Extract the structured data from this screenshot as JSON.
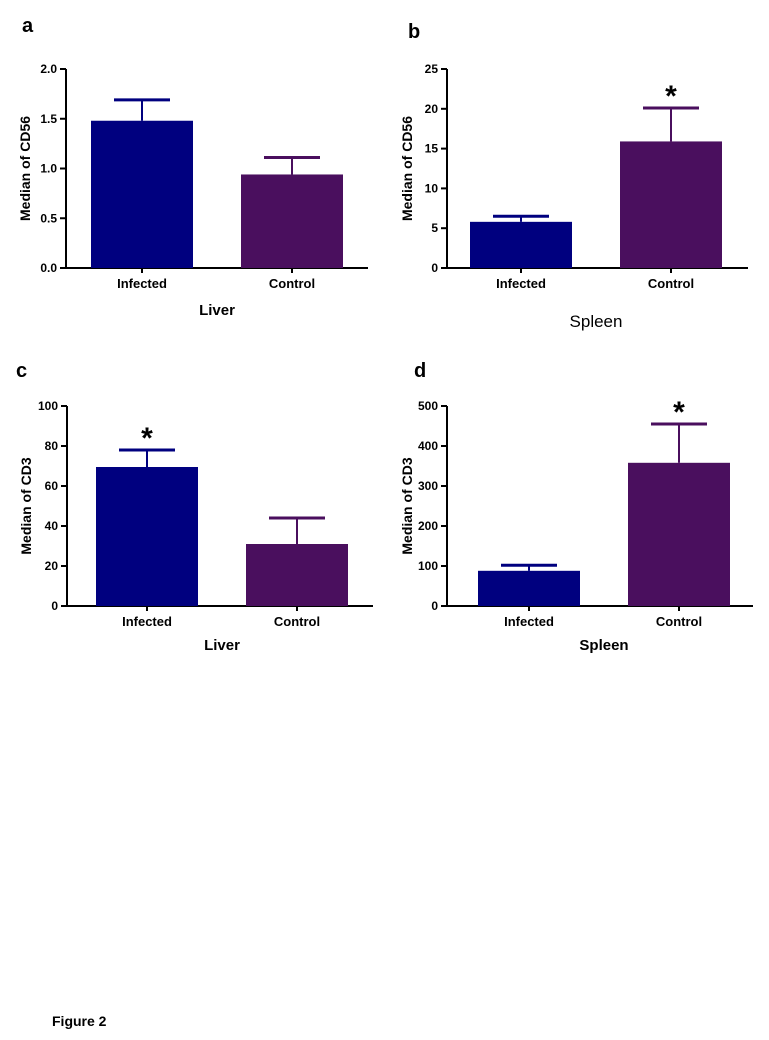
{
  "figure_caption": "Figure 2",
  "colors": {
    "infected": "#00007f",
    "control": "#4a0f5e",
    "axis": "#000000"
  },
  "chart_data": [
    {
      "panel": "a",
      "type": "bar",
      "categories": [
        "Infected",
        "Control"
      ],
      "values": [
        1.48,
        0.94
      ],
      "error_upper": [
        1.69,
        1.11
      ],
      "significance": [
        false,
        false
      ],
      "ylabel": "Median of CD56",
      "xlabel": "Liver",
      "xlabel_style": "bold",
      "ylim": [
        0,
        2.0
      ],
      "yticks": [
        "0.0",
        "0.5",
        "1.0",
        "1.5",
        "2.0"
      ],
      "ytick_values": [
        0,
        0.5,
        1.0,
        1.5,
        2.0
      ],
      "grid": false
    },
    {
      "panel": "b",
      "type": "bar",
      "categories": [
        "Infected",
        "Control"
      ],
      "values": [
        5.8,
        15.9
      ],
      "error_upper": [
        6.5,
        20.1
      ],
      "significance": [
        false,
        true
      ],
      "ylabel": "Median of CD56",
      "xlabel": "Spleen",
      "xlabel_style": "normal",
      "ylim": [
        0,
        25
      ],
      "yticks": [
        "0",
        "5",
        "10",
        "15",
        "20",
        "25"
      ],
      "ytick_values": [
        0,
        5,
        10,
        15,
        20,
        25
      ],
      "grid": false
    },
    {
      "panel": "c",
      "type": "bar",
      "categories": [
        "Infected",
        "Control"
      ],
      "values": [
        69.5,
        31
      ],
      "error_upper": [
        78,
        44
      ],
      "significance": [
        true,
        false
      ],
      "ylabel": "Median of CD3",
      "xlabel": "Liver",
      "xlabel_style": "bold",
      "ylim": [
        0,
        100
      ],
      "yticks": [
        "0",
        "20",
        "40",
        "60",
        "80",
        "100"
      ],
      "ytick_values": [
        0,
        20,
        40,
        60,
        80,
        100
      ],
      "grid": false
    },
    {
      "panel": "d",
      "type": "bar",
      "categories": [
        "Infected",
        "Control"
      ],
      "values": [
        88,
        358
      ],
      "error_upper": [
        102,
        455
      ],
      "significance": [
        false,
        true
      ],
      "ylabel": "Median of CD3",
      "xlabel": "Spleen",
      "xlabel_style": "bold",
      "ylim": [
        0,
        500
      ],
      "yticks": [
        "0",
        "100",
        "200",
        "300",
        "400",
        "500"
      ],
      "ytick_values": [
        0,
        100,
        200,
        300,
        400,
        500
      ],
      "grid": false
    }
  ],
  "significance_marker": "*"
}
